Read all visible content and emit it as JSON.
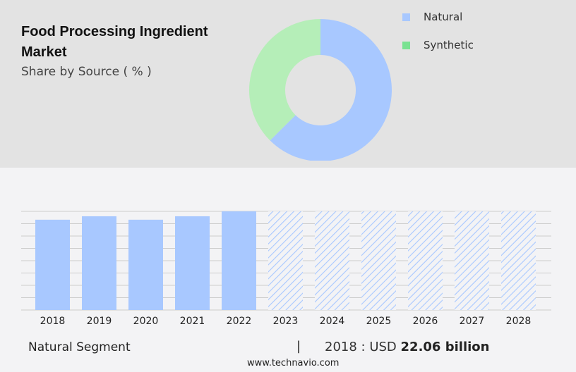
{
  "header": {
    "title": "Food Processing Ingredient Market",
    "subtitle": "Share by Source ( % )"
  },
  "chart_data": [
    {
      "type": "pie",
      "variant": "donut",
      "categories": [
        "Natural",
        "Synthetic"
      ],
      "values": [
        62.5,
        37.5
      ],
      "colors": [
        "#a8c8ff",
        "#b5eeb8"
      ],
      "legend_colors": [
        "#a8c8ff",
        "#79e291"
      ],
      "legend": "top-right"
    },
    {
      "type": "bar",
      "categories": [
        "2018",
        "2019",
        "2020",
        "2021",
        "2022",
        "2023",
        "2024",
        "2025",
        "2026",
        "2027",
        "2028"
      ],
      "values": [
        22.06,
        22.9,
        22.06,
        22.9,
        24.1,
        null,
        null,
        null,
        null,
        null,
        null
      ],
      "forecast": [
        false,
        false,
        false,
        false,
        false,
        true,
        true,
        true,
        true,
        true,
        true
      ],
      "ylim": [
        0,
        24.1
      ],
      "grid": true,
      "color": "#a8c8ff",
      "xlabel": "",
      "ylabel": ""
    }
  ],
  "footer": {
    "segment": "Natural Segment",
    "separator": "|",
    "value_prefix": "2018 : USD",
    "value_bold": "22.06 billion",
    "url": "www.technavio.com"
  }
}
